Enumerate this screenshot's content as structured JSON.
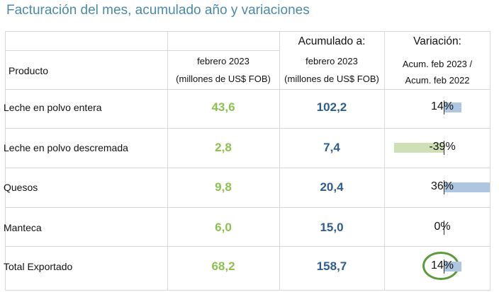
{
  "title": "Facturación del mes, acumulado año y variaciones",
  "header": {
    "product": "Producto",
    "month_line1": "febrero 2023",
    "month_line2": "(millones de US$ FOB)",
    "accum_title": "Acumulado a:",
    "accum_line1": "febrero 2023",
    "accum_line2": "(millones de US$ FOB)",
    "var_title": "Variación:",
    "var_line1": "Acum. feb 2023 /",
    "var_line2": "Acum. feb 2022"
  },
  "rows": [
    {
      "product": "Leche en polvo entera",
      "month": "43,6",
      "accum": "102,2",
      "variation": "14%",
      "variation_value": 14
    },
    {
      "product": "Leche en polvo descremada",
      "month": "2,8",
      "accum": "7,4",
      "variation": "-39%",
      "variation_value": -39
    },
    {
      "product": "Quesos",
      "month": "9,8",
      "accum": "20,4",
      "variation": "36%",
      "variation_value": 36
    },
    {
      "product": "Manteca",
      "month": "6,0",
      "accum": "15,0",
      "variation": "0%",
      "variation_value": 0
    },
    {
      "product": "Total Exportado",
      "month": "68,2",
      "accum": "158,7",
      "variation": "14%",
      "variation_value": 14
    }
  ],
  "colors": {
    "title": "#4b8aa8",
    "month_value": "#8cc04f",
    "accum_value": "#2e5d8e",
    "positive_bar": "#aec6e0",
    "negative_bar": "#cfe0b7",
    "highlight_circle": "#5c9b3c"
  }
}
